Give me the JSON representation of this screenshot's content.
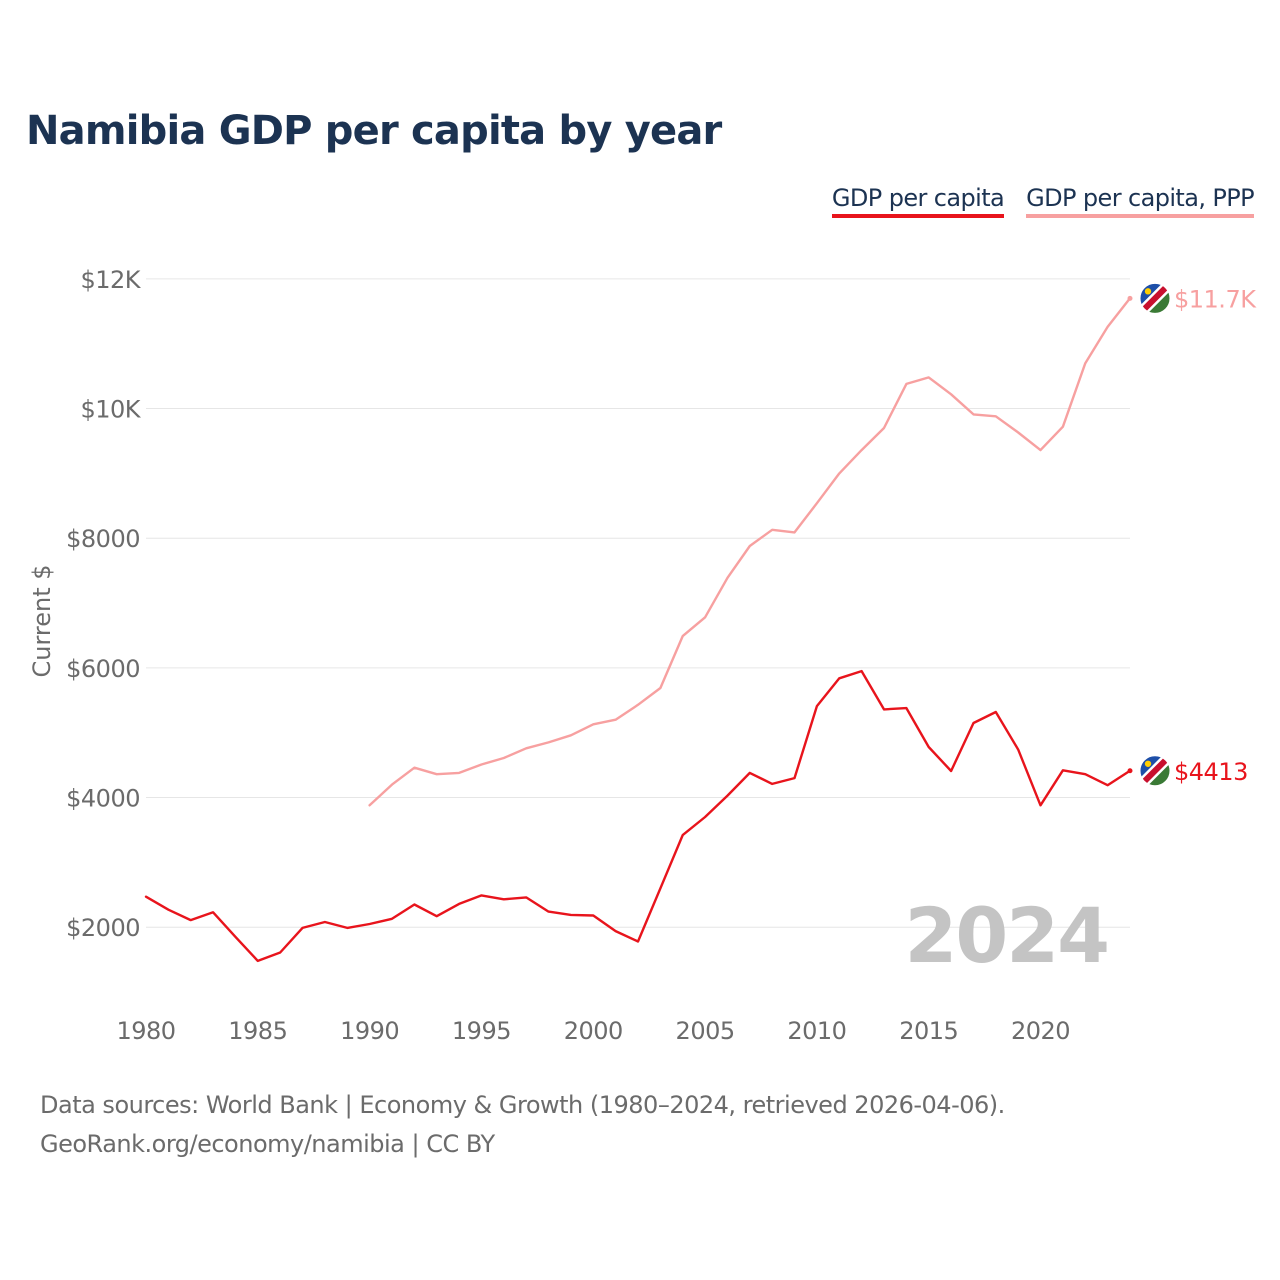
{
  "title": "Namibia GDP per capita by year",
  "footer": {
    "sources": "Data sources: World Bank | Economy & Growth (1980–2024, retrieved 2026-04-06).",
    "credit": "GeoRank.org/economy/namibia | CC BY"
  },
  "chart_data": {
    "type": "line",
    "ylabel": "Current $",
    "ylim": [
      800,
      12600
    ],
    "xlim": [
      1980,
      2024
    ],
    "grid": true,
    "legend_position": "top-right",
    "year_watermark": "2024",
    "y_ticks": [
      {
        "value": 2000,
        "label": "$2000"
      },
      {
        "value": 4000,
        "label": "$4000"
      },
      {
        "value": 6000,
        "label": "$6000"
      },
      {
        "value": 8000,
        "label": "$8000"
      },
      {
        "value": 10000,
        "label": "$10K"
      },
      {
        "value": 12000,
        "label": "$12K"
      }
    ],
    "x_ticks": [
      1980,
      1985,
      1990,
      1995,
      2000,
      2005,
      2010,
      2015,
      2020
    ],
    "series": [
      {
        "name": "GDP per capita",
        "color": "#e8141c",
        "end_label": "$4413",
        "x": [
          1980,
          1981,
          1982,
          1983,
          1984,
          1985,
          1986,
          1987,
          1988,
          1989,
          1990,
          1991,
          1992,
          1993,
          1994,
          1995,
          1996,
          1997,
          1998,
          1999,
          2000,
          2001,
          2002,
          2003,
          2004,
          2005,
          2006,
          2007,
          2008,
          2009,
          2010,
          2011,
          2012,
          2013,
          2014,
          2015,
          2016,
          2017,
          2018,
          2019,
          2020,
          2021,
          2022,
          2023,
          2024
        ],
        "values": [
          2470,
          2270,
          2110,
          2230,
          1850,
          1480,
          1610,
          1990,
          2080,
          1990,
          2050,
          2130,
          2350,
          2170,
          2360,
          2490,
          2430,
          2460,
          2240,
          2190,
          2180,
          1940,
          1780,
          2600,
          3420,
          3700,
          4030,
          4380,
          4210,
          4300,
          5410,
          5840,
          5950,
          5360,
          5380,
          4780,
          4410,
          5150,
          5320,
          4740,
          3880,
          4420,
          4360,
          4190,
          4413
        ]
      },
      {
        "name": "GDP per capita, PPP",
        "color": "#f7a0a0",
        "end_label": "$11.7K",
        "x": [
          1990,
          1991,
          1992,
          1993,
          1994,
          1995,
          1996,
          1997,
          1998,
          1999,
          2000,
          2001,
          2002,
          2003,
          2004,
          2005,
          2006,
          2007,
          2008,
          2009,
          2010,
          2011,
          2012,
          2013,
          2014,
          2015,
          2016,
          2017,
          2018,
          2019,
          2020,
          2021,
          2022,
          2023,
          2024
        ],
        "values": [
          3880,
          4200,
          4460,
          4360,
          4380,
          4510,
          4610,
          4760,
          4850,
          4960,
          5130,
          5200,
          5430,
          5690,
          6490,
          6780,
          7390,
          7880,
          8130,
          8090,
          8540,
          9000,
          9360,
          9700,
          10380,
          10480,
          10220,
          9910,
          9880,
          9630,
          9360,
          9720,
          10700,
          11260,
          11700
        ]
      }
    ]
  }
}
